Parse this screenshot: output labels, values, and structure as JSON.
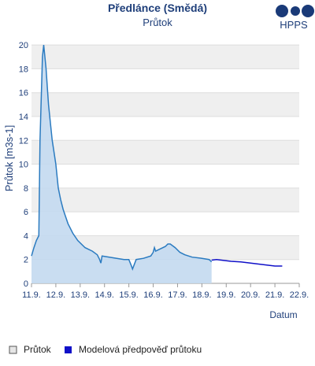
{
  "chart_data": {
    "type": "line",
    "title": "Předlánce (Smědá)",
    "subtitle": "Průtok",
    "logo_text": "HPPS",
    "y_label": "Průtok [m3s-1]",
    "x_label": "Datum",
    "xlim": [
      11,
      22
    ],
    "ylim": [
      0,
      21
    ],
    "xticks": [
      {
        "value": 11,
        "label": "11.9."
      },
      {
        "value": 12,
        "label": "12.9."
      },
      {
        "value": 13,
        "label": "13.9."
      },
      {
        "value": 14,
        "label": "14.9."
      },
      {
        "value": 15,
        "label": "15.9."
      },
      {
        "value": 16,
        "label": "16.9."
      },
      {
        "value": 17,
        "label": "17.9."
      },
      {
        "value": 18,
        "label": "18.9."
      },
      {
        "value": 19,
        "label": "19.9."
      },
      {
        "value": 20,
        "label": "20.9."
      },
      {
        "value": 21,
        "label": "21.9."
      },
      {
        "value": 22,
        "label": "22.9."
      }
    ],
    "yticks": [
      0,
      2,
      4,
      6,
      8,
      10,
      12,
      14,
      16,
      18,
      20
    ],
    "grid": true,
    "series": [
      {
        "name": "Průtok",
        "color": "#2b7bc0",
        "area_color": "#c3d9ef",
        "x": [
          11.0,
          11.1,
          11.2,
          11.3,
          11.35,
          11.45,
          11.5,
          11.6,
          11.7,
          11.85,
          12.0,
          12.1,
          12.2,
          12.3,
          12.5,
          12.7,
          12.9,
          13.2,
          13.5,
          13.7,
          13.8,
          13.85,
          13.9,
          14.2,
          14.5,
          14.8,
          15.0,
          15.1,
          15.15,
          15.3,
          15.6,
          15.9,
          16.0,
          16.05,
          16.1,
          16.3,
          16.5,
          16.6,
          16.7,
          16.9,
          17.1,
          17.3,
          17.6,
          18.0,
          18.3,
          18.4
        ],
        "values": [
          2.3,
          3.0,
          3.6,
          4.0,
          12,
          19,
          20,
          18,
          15,
          12,
          10,
          8,
          7,
          6.2,
          5,
          4.2,
          3.6,
          3.0,
          2.7,
          2.4,
          2.0,
          1.7,
          2.3,
          2.2,
          2.1,
          2.0,
          2.0,
          1.5,
          1.2,
          2.0,
          2.1,
          2.3,
          2.6,
          3.0,
          2.7,
          2.9,
          3.1,
          3.3,
          3.3,
          3.0,
          2.6,
          2.4,
          2.2,
          2.1,
          2.0,
          1.8
        ]
      },
      {
        "name": "Modelová předpověď průtoku",
        "color": "#1010c8",
        "x": [
          18.4,
          18.6,
          18.8,
          19.2,
          19.6,
          20.0,
          20.4,
          20.8,
          21.0,
          21.3
        ],
        "values": [
          1.95,
          2.0,
          1.95,
          1.85,
          1.8,
          1.7,
          1.6,
          1.5,
          1.45,
          1.45
        ]
      }
    ]
  }
}
